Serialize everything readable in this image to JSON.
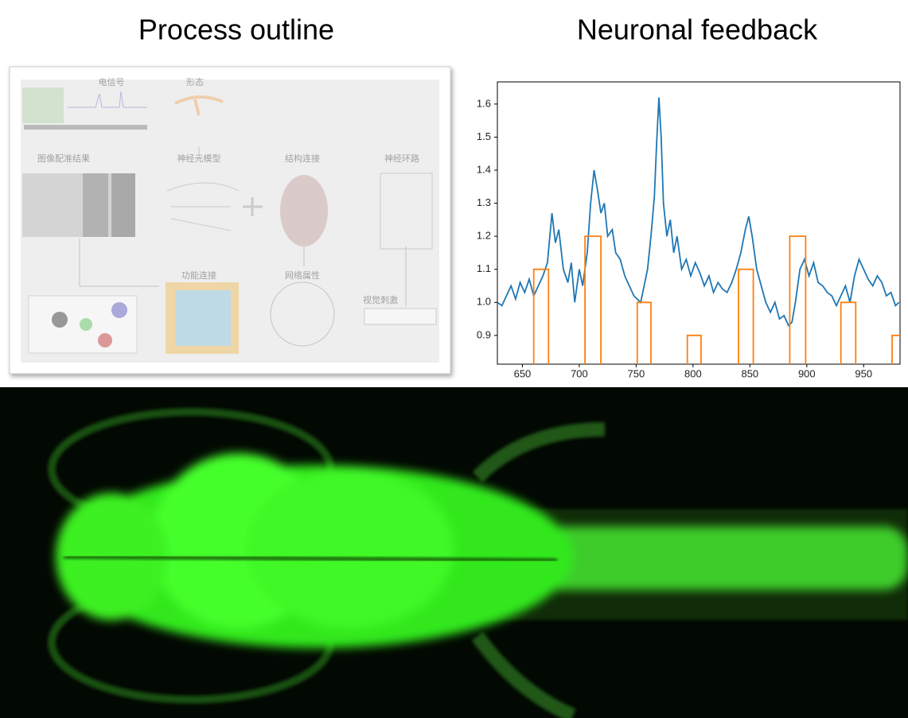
{
  "panels": {
    "left_title": "Process outline",
    "right_title": "Neuronal feedback"
  },
  "diagram": {
    "labels": [
      "电信号",
      "形态",
      "图像配准结果",
      "神经元模型",
      "结构连接",
      "神经环路",
      "功能连接",
      "网络属性",
      "视觉刺激"
    ]
  },
  "chart_data": {
    "type": "line",
    "xlim": [
      628,
      982
    ],
    "ylim": [
      0.813,
      1.667
    ],
    "xticks": [
      650,
      700,
      750,
      800,
      850,
      900,
      950
    ],
    "yticks": [
      0.9,
      {
        "value": 1,
        "label": "1.0"
      },
      1.1,
      1.2,
      1.3,
      1.4,
      1.5,
      1.6
    ],
    "series": [
      {
        "color": "#1f77b4",
        "x": [
          628,
          632,
          636,
          640,
          644,
          648,
          652,
          656,
          660,
          664,
          668,
          672,
          676,
          679,
          682,
          686,
          690,
          693,
          696,
          700,
          703,
          707,
          710,
          713,
          716,
          719,
          722,
          725,
          729,
          732,
          736,
          740,
          744,
          748,
          751,
          754,
          757,
          760,
          763,
          766,
          768,
          770,
          772,
          774,
          777,
          780,
          783,
          786,
          790,
          794,
          798,
          802,
          806,
          810,
          814,
          818,
          822,
          826,
          830,
          834,
          838,
          842,
          846,
          849,
          852,
          856,
          860,
          864,
          868,
          872,
          876,
          880,
          884,
          887,
          890,
          894,
          898,
          902,
          906,
          910,
          914,
          918,
          922,
          926,
          930,
          934,
          938,
          942,
          946,
          950,
          954,
          958,
          962,
          966,
          970,
          974,
          978,
          981
        ],
        "values": [
          1.0,
          0.99,
          1.02,
          1.05,
          1.01,
          1.06,
          1.03,
          1.07,
          1.02,
          1.05,
          1.08,
          1.12,
          1.27,
          1.18,
          1.22,
          1.1,
          1.06,
          1.12,
          1.0,
          1.1,
          1.05,
          1.15,
          1.3,
          1.4,
          1.34,
          1.27,
          1.3,
          1.2,
          1.22,
          1.15,
          1.13,
          1.08,
          1.05,
          1.02,
          1.01,
          1.0,
          1.05,
          1.1,
          1.2,
          1.32,
          1.48,
          1.62,
          1.5,
          1.3,
          1.2,
          1.25,
          1.15,
          1.2,
          1.1,
          1.13,
          1.08,
          1.12,
          1.09,
          1.05,
          1.08,
          1.03,
          1.06,
          1.04,
          1.03,
          1.06,
          1.1,
          1.15,
          1.22,
          1.26,
          1.2,
          1.1,
          1.05,
          1.0,
          0.97,
          1.0,
          0.95,
          0.96,
          0.93,
          0.94,
          1.0,
          1.1,
          1.13,
          1.08,
          1.12,
          1.06,
          1.05,
          1.03,
          1.02,
          0.99,
          1.02,
          1.05,
          1.0,
          1.08,
          1.13,
          1.1,
          1.07,
          1.05,
          1.08,
          1.06,
          1.02,
          1.03,
          0.99,
          1.0
        ]
      },
      {
        "color": "#ff7f0e",
        "x": [
          660,
          660,
          673,
          673,
          705,
          705,
          719,
          719,
          751,
          751,
          763,
          763,
          795,
          795,
          807,
          807,
          840,
          840,
          853,
          853,
          885,
          885,
          899,
          899,
          930,
          930,
          943,
          943,
          975,
          975,
          982
        ],
        "values": [
          0.8,
          1.1,
          1.1,
          0.8,
          0.8,
          1.2,
          1.2,
          0.8,
          0.8,
          1.0,
          1.0,
          0.8,
          0.8,
          0.9,
          0.9,
          0.8,
          0.8,
          1.1,
          1.1,
          0.8,
          0.8,
          1.2,
          1.2,
          0.8,
          0.8,
          1.0,
          1.0,
          0.8,
          0.8,
          0.9,
          0.9
        ]
      }
    ]
  }
}
